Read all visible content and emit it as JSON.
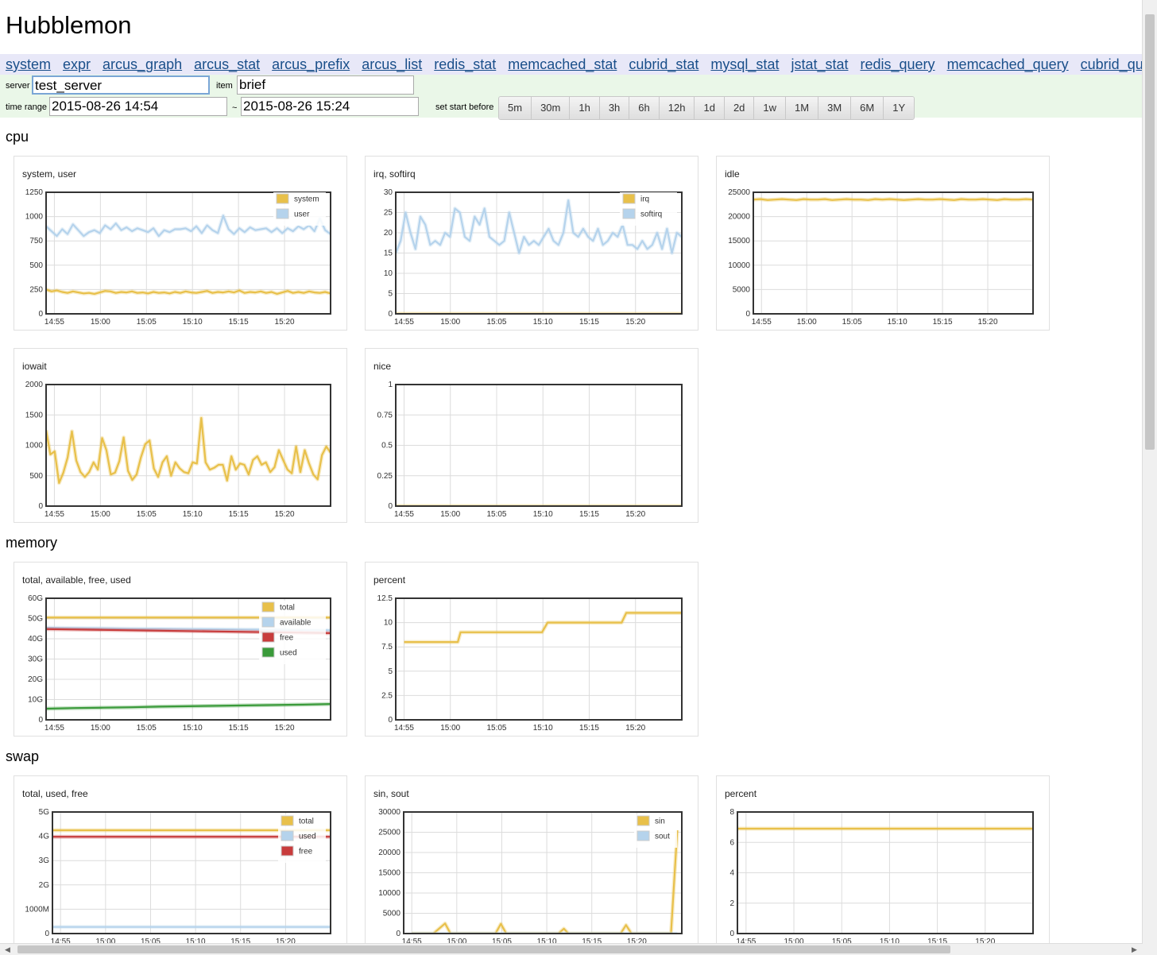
{
  "app": {
    "title": "Hubblemon"
  },
  "nav": [
    "system",
    "expr",
    "arcus_graph",
    "arcus_stat",
    "arcus_prefix",
    "arcus_list",
    "redis_stat",
    "memcached_stat",
    "cubrid_stat",
    "mysql_stat",
    "jstat_stat",
    "redis_query",
    "memcached_query",
    "cubrid_qu"
  ],
  "controls": {
    "server_label": "server",
    "server_value": "test_server",
    "item_label": "item",
    "item_value": "brief",
    "time_range_label": "time range",
    "start_time": "2015-08-26 14:54",
    "tilde": "~",
    "end_time": "2015-08-26 15:24",
    "set_start_label": "set start before",
    "ranges": [
      "5m",
      "30m",
      "1h",
      "3h",
      "6h",
      "12h",
      "1d",
      "2d",
      "1w",
      "1M",
      "3M",
      "6M",
      "1Y"
    ]
  },
  "sections": {
    "cpu": "cpu",
    "memory": "memory",
    "swap": "swap"
  },
  "colors": {
    "yellow": "#e8c04a",
    "blue": "#b5d3ec",
    "red": "#c83c3c",
    "green": "#3a9a3a"
  },
  "scroll_icons": {
    "left": "arrow-left-icon",
    "right": "arrow-right-icon"
  },
  "chart_data": [
    {
      "id": "cpu-system-user",
      "type": "line",
      "title": "system, user",
      "x_ticks": [
        "14:55",
        "15:00",
        "15:05",
        "15:10",
        "15:15",
        "15:20"
      ],
      "ylim": [
        0,
        1250
      ],
      "y_ticks": [
        "0",
        "250",
        "500",
        "750",
        "1000",
        "1250"
      ],
      "legend": "top-right",
      "series": [
        {
          "name": "system",
          "color": "#e8c04a",
          "values": [
            250,
            230,
            240,
            225,
            215,
            230,
            220,
            210,
            215,
            205,
            220,
            235,
            230,
            215,
            225,
            220,
            230,
            215,
            220,
            210,
            225,
            215,
            220,
            210,
            225,
            215,
            230,
            220,
            215,
            225,
            235,
            215,
            225,
            220,
            230,
            220,
            240,
            215,
            225,
            220,
            230,
            215,
            225,
            205,
            220,
            235,
            215,
            225,
            215,
            230,
            220,
            215,
            225,
            210
          ]
        },
        {
          "name": "user",
          "color": "#b5d3ec",
          "values": [
            900,
            850,
            800,
            870,
            820,
            920,
            860,
            800,
            840,
            860,
            830,
            910,
            870,
            930,
            860,
            890,
            850,
            880,
            860,
            840,
            880,
            800,
            860,
            840,
            870,
            870,
            880,
            850,
            900,
            830,
            910,
            860,
            830,
            1010,
            870,
            820,
            880,
            840,
            890,
            860,
            870,
            880,
            840,
            880,
            830,
            880,
            850,
            900,
            870,
            910,
            850,
            980,
            860,
            820
          ]
        }
      ]
    },
    {
      "id": "cpu-irq-softirq",
      "type": "line",
      "title": "irq, softirq",
      "x_ticks": [
        "14:55",
        "15:00",
        "15:05",
        "15:10",
        "15:15",
        "15:20"
      ],
      "ylim": [
        0,
        30
      ],
      "y_ticks": [
        "0",
        "5",
        "10",
        "15",
        "20",
        "25",
        "30"
      ],
      "legend": "top-right",
      "series": [
        {
          "name": "irq",
          "color": "#e8c04a",
          "values": [
            0,
            0,
            0,
            0,
            0,
            0,
            0,
            0,
            0,
            0,
            0,
            0,
            0,
            0,
            0,
            0,
            0,
            0,
            0,
            0,
            0,
            0,
            0,
            0,
            0,
            0,
            0,
            0,
            0,
            0,
            0,
            0,
            0,
            0,
            0,
            0,
            0,
            0,
            0,
            0,
            0,
            0,
            0,
            0,
            0,
            0,
            0,
            0,
            0,
            0,
            0,
            0,
            0,
            0,
            0,
            0,
            0,
            0,
            0
          ]
        },
        {
          "name": "softirq",
          "color": "#b5d3ec",
          "values": [
            15,
            18,
            25,
            20,
            16,
            24,
            22,
            17,
            18,
            17,
            20,
            19,
            26,
            25,
            19,
            18,
            24,
            22,
            26,
            19,
            18,
            17,
            18,
            25,
            20,
            15,
            19,
            17,
            18,
            17,
            19,
            21,
            18,
            17,
            20,
            28,
            20,
            19,
            21,
            19,
            18,
            21,
            17,
            18,
            20,
            19,
            22,
            17,
            17,
            16,
            18,
            16,
            17,
            20,
            16,
            21,
            15,
            20,
            19
          ]
        }
      ]
    },
    {
      "id": "cpu-idle",
      "type": "line",
      "title": "idle",
      "x_ticks": [
        "14:55",
        "15:00",
        "15:05",
        "15:10",
        "15:15",
        "15:20"
      ],
      "ylim": [
        0,
        25000
      ],
      "y_ticks": [
        "0",
        "5000",
        "10000",
        "15000",
        "20000",
        "25000"
      ],
      "legend": "none",
      "series": [
        {
          "name": "idle",
          "color": "#e8c04a",
          "values": [
            23500,
            23600,
            23400,
            23500,
            23600,
            23500,
            23400,
            23600,
            23500,
            23500,
            23600,
            23400,
            23500,
            23600,
            23500,
            23500,
            23400,
            23600,
            23500,
            23600,
            23500,
            23400,
            23500,
            23600,
            23500,
            23500,
            23600,
            23500,
            23400,
            23600,
            23500,
            23500,
            23600,
            23500,
            23400,
            23600,
            23500,
            23500,
            23600,
            23500
          ]
        }
      ]
    },
    {
      "id": "cpu-iowait",
      "type": "line",
      "title": "iowait",
      "x_ticks": [
        "14:55",
        "15:00",
        "15:05",
        "15:10",
        "15:15",
        "15:20"
      ],
      "ylim": [
        0,
        2000
      ],
      "y_ticks": [
        "0",
        "500",
        "1000",
        "1500",
        "2000"
      ],
      "legend": "none",
      "series": [
        {
          "name": "iowait",
          "color": "#e8c04a",
          "values": [
            1250,
            850,
            900,
            380,
            550,
            800,
            1230,
            750,
            560,
            480,
            560,
            720,
            600,
            1120,
            920,
            520,
            550,
            740,
            1130,
            580,
            430,
            520,
            800,
            1020,
            1080,
            620,
            480,
            720,
            820,
            500,
            720,
            620,
            560,
            540,
            720,
            700,
            1450,
            720,
            600,
            630,
            680,
            680,
            420,
            820,
            600,
            700,
            680,
            520,
            760,
            820,
            680,
            720,
            560,
            640,
            920,
            760,
            600,
            540,
            980,
            560,
            920,
            700,
            520,
            440,
            840,
            980,
            880
          ]
        }
      ]
    },
    {
      "id": "cpu-nice",
      "type": "line",
      "title": "nice",
      "x_ticks": [
        "14:55",
        "15:00",
        "15:05",
        "15:10",
        "15:15",
        "15:20"
      ],
      "ylim": [
        0,
        1
      ],
      "y_ticks": [
        "0",
        "0.25",
        "0.5",
        "0.75",
        "1"
      ],
      "legend": "none",
      "series": [
        {
          "name": "nice",
          "color": "#e8c04a",
          "values": [
            0,
            0,
            0,
            0,
            0,
            0,
            0,
            0,
            0,
            0,
            0,
            0,
            0,
            0,
            0,
            0,
            0,
            0,
            0,
            0,
            0,
            0,
            0,
            0,
            0,
            0,
            0,
            0,
            0,
            0,
            0,
            0,
            0,
            0,
            0,
            0,
            0,
            0,
            0,
            0
          ]
        }
      ]
    },
    {
      "id": "memory-usage",
      "type": "line",
      "title": "total, available, free, used",
      "x_ticks": [
        "14:55",
        "15:00",
        "15:05",
        "15:10",
        "15:15",
        "15:20"
      ],
      "ylim": [
        0,
        60
      ],
      "y_ticks": [
        "0",
        "10G",
        "20G",
        "30G",
        "40G",
        "50G",
        "60G"
      ],
      "legend": "top-right",
      "series": [
        {
          "name": "total",
          "color": "#e8c04a",
          "values": [
            50.5,
            50.5,
            50.5,
            50.5,
            50.5,
            50.5,
            50.5,
            50.5,
            50.5,
            50.5,
            50.5
          ]
        },
        {
          "name": "available",
          "color": "#b5d3ec",
          "values": [
            45.5,
            45.3,
            45.2,
            45,
            44.9,
            44.8,
            44.7,
            44.6,
            44.5,
            44.3,
            44.2
          ]
        },
        {
          "name": "free",
          "color": "#c83c3c",
          "values": [
            44.8,
            44.6,
            44.4,
            44.2,
            44,
            43.8,
            43.6,
            43.4,
            43.2,
            43,
            42.8
          ]
        },
        {
          "name": "used",
          "color": "#3a9a3a",
          "values": [
            5.5,
            5.8,
            6,
            6.2,
            6.5,
            6.7,
            6.9,
            7.1,
            7.3,
            7.5,
            7.8
          ]
        }
      ]
    },
    {
      "id": "memory-percent",
      "type": "line",
      "title": "percent",
      "x_ticks": [
        "14:55",
        "15:00",
        "15:05",
        "15:10",
        "15:15",
        "15:20"
      ],
      "ylim": [
        0,
        12.5
      ],
      "y_ticks": [
        "0",
        "2.5",
        "5",
        "7.5",
        "10",
        "12.5"
      ],
      "legend": "none",
      "series": [
        {
          "name": "percent",
          "color": "#e8c04a",
          "points": [
            [
              0,
              8
            ],
            [
              5.8,
              8
            ],
            [
              6.1,
              9
            ],
            [
              14.9,
              9
            ],
            [
              15.5,
              10
            ],
            [
              23.5,
              10
            ],
            [
              24,
              11
            ],
            [
              30,
              11
            ]
          ]
        }
      ]
    },
    {
      "id": "swap-usage",
      "type": "line",
      "title": "total, used, free",
      "x_ticks": [
        "14:55",
        "15:00",
        "15:05",
        "15:10",
        "15:15",
        "15:20"
      ],
      "ylim": [
        0,
        5
      ],
      "y_ticks": [
        "0",
        "1000M",
        "2G",
        "3G",
        "4G",
        "5G"
      ],
      "legend": "top-right",
      "series": [
        {
          "name": "total",
          "color": "#e8c04a",
          "values": [
            4.25,
            4.25,
            4.25,
            4.25,
            4.25,
            4.25
          ]
        },
        {
          "name": "used",
          "color": "#b5d3ec",
          "values": [
            0.27,
            0.27,
            0.27,
            0.27,
            0.27,
            0.27
          ]
        },
        {
          "name": "free",
          "color": "#c83c3c",
          "values": [
            3.98,
            3.98,
            3.98,
            3.98,
            3.98,
            3.98
          ]
        }
      ]
    },
    {
      "id": "swap-sin-sout",
      "type": "line",
      "title": "sin, sout",
      "x_ticks": [
        "14:55",
        "15:00",
        "15:05",
        "15:10",
        "15:15",
        "15:20"
      ],
      "ylim": [
        0,
        30000
      ],
      "y_ticks": [
        "0",
        "5000",
        "10000",
        "15000",
        "20000",
        "25000",
        "30000"
      ],
      "legend": "top-right",
      "series": [
        {
          "name": "sin",
          "color": "#e8c04a",
          "points": [
            [
              0,
              0
            ],
            [
              2.4,
              0
            ],
            [
              3.7,
              2500
            ],
            [
              4.3,
              0
            ],
            [
              9.3,
              0
            ],
            [
              9.9,
              2400
            ],
            [
              10.5,
              0
            ],
            [
              16.3,
              0
            ],
            [
              16.9,
              1200
            ],
            [
              17.4,
              0
            ],
            [
              23.2,
              0
            ],
            [
              23.8,
              2100
            ],
            [
              24.4,
              0
            ],
            [
              28.8,
              0
            ],
            [
              29.5,
              25500
            ]
          ]
        },
        {
          "name": "sout",
          "color": "#b5d3ec",
          "points": [
            [
              0,
              0
            ],
            [
              29.5,
              0
            ]
          ]
        }
      ]
    },
    {
      "id": "swap-percent",
      "type": "line",
      "title": "percent",
      "x_ticks": [
        "14:55",
        "15:00",
        "15:05",
        "15:10",
        "15:15",
        "15:20"
      ],
      "ylim": [
        0,
        8
      ],
      "y_ticks": [
        "0",
        "2",
        "4",
        "6",
        "8"
      ],
      "legend": "none",
      "series": [
        {
          "name": "percent",
          "color": "#e8c04a",
          "values": [
            6.9,
            6.9,
            6.9,
            6.9,
            6.9,
            6.9
          ]
        }
      ]
    }
  ]
}
